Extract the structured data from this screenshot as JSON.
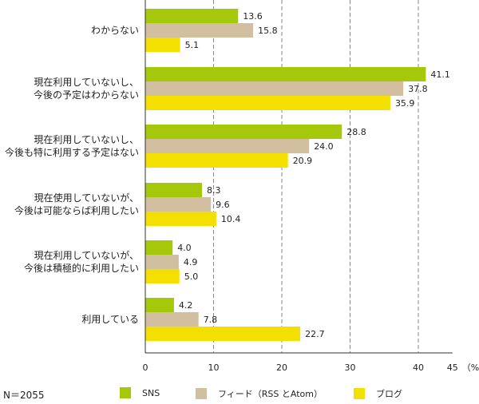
{
  "chart_data": {
    "type": "bar",
    "orientation": "horizontal",
    "categories": [
      [
        "わからない"
      ],
      [
        "現在利用していないし、",
        "今後の予定はわからない"
      ],
      [
        "現在利用していないし、",
        "今後も特に利用する予定はない"
      ],
      [
        "現在使用していないが、",
        "今後は可能ならば利用したい"
      ],
      [
        "現在利用していないが、",
        "今後は積極的に利用したい"
      ],
      [
        "利用している"
      ]
    ],
    "series": [
      {
        "name": "SNS",
        "color": "#a6c80a",
        "values": [
          13.6,
          41.1,
          28.8,
          8.3,
          4.0,
          4.2
        ]
      },
      {
        "name": "フィード（RSS とAtom）",
        "color": "#d1bfa0",
        "values": [
          15.8,
          37.8,
          24.0,
          9.6,
          4.9,
          7.8
        ]
      },
      {
        "name": "ブログ",
        "color": "#f4e000",
        "values": [
          5.1,
          35.9,
          20.9,
          10.4,
          5.0,
          22.7
        ]
      }
    ],
    "value_labels": [
      [
        "13.6",
        "15.8",
        "5.1"
      ],
      [
        "41.1",
        "37.8",
        "35.9"
      ],
      [
        "28.8",
        "24.0",
        "20.9"
      ],
      [
        "8.3",
        "9.6",
        "10.4"
      ],
      [
        "4.0",
        "4.9",
        "5.0"
      ],
      [
        "4.2",
        "7.8",
        "22.7"
      ]
    ],
    "x_ticks": [
      0,
      10,
      20,
      30,
      40,
      45
    ],
    "x_tick_labels": [
      "0",
      "10",
      "20",
      "30",
      "40",
      "45"
    ],
    "x_unit_label": "（%）",
    "xlim": [
      0,
      45
    ],
    "grid": "vertical-dashed",
    "legend_position": "bottom"
  },
  "legend": {
    "n_label": "N＝2055",
    "items": [
      "SNS",
      "フィード（RSS とAtom）",
      "ブログ"
    ]
  }
}
